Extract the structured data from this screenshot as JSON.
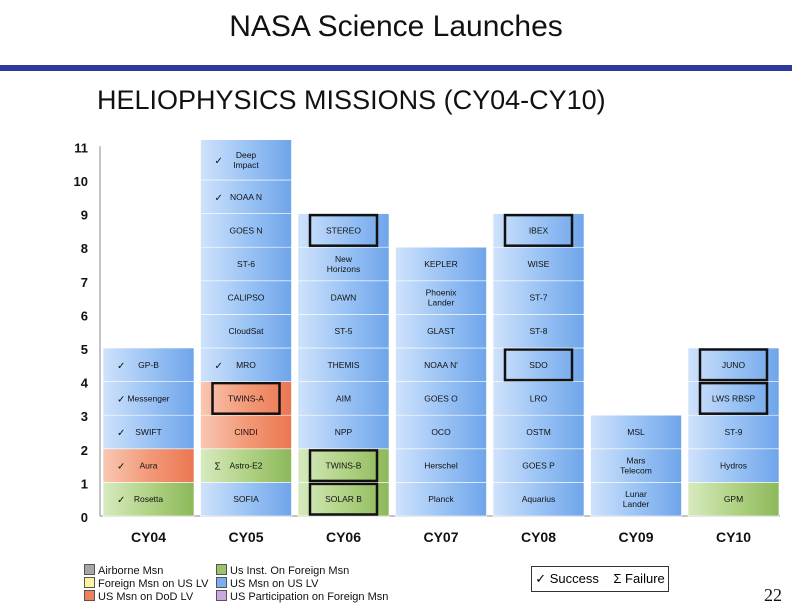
{
  "header": {
    "title": "NASA Science Launches",
    "subtitle": "HELIOPHYSICS MISSIONS (CY04-CY10)"
  },
  "page_number": "22",
  "status_key": {
    "success": "Success",
    "failure": "Failure"
  },
  "legend": [
    {
      "label": "Airborne Msn",
      "color": "#a6a6a6"
    },
    {
      "label": "Foreign Msn on US LV",
      "color": "#fff2a0"
    },
    {
      "label": "US Msn on DoD LV",
      "color": "#f07f5c"
    },
    {
      "label": "Us Inst. On Foreign Msn",
      "color": "#9bc36b"
    },
    {
      "label": "US Msn on US LV",
      "color": "#7aaef0"
    },
    {
      "label": "US Participation on Foreign Msn",
      "color": "#c9a8e0"
    }
  ],
  "chart_data": {
    "type": "bar",
    "stacked": true,
    "ylim": [
      0,
      11
    ],
    "yticks": [
      0,
      1,
      2,
      3,
      4,
      5,
      6,
      7,
      8,
      9,
      10,
      11
    ],
    "categories": [
      "CY04",
      "CY05",
      "CY06",
      "CY07",
      "CY08",
      "CY09",
      "CY10"
    ],
    "colors": {
      "blue": "#7aaef0",
      "green": "#9bc36b",
      "orange": "#f07f5c"
    },
    "columns": [
      {
        "category": "CY04",
        "segments": [
          {
            "label": "Rosetta",
            "color": "green",
            "mark": "success",
            "h": 1
          },
          {
            "label": "Aura",
            "color": "orange",
            "mark": "success",
            "h": 1
          },
          {
            "label": "SWIFT",
            "color": "blue",
            "mark": "success",
            "h": 1
          },
          {
            "label": "Messenger",
            "color": "blue",
            "mark": "success",
            "h": 1
          },
          {
            "label": "GP-B",
            "color": "blue",
            "mark": "success",
            "h": 1
          }
        ]
      },
      {
        "category": "CY05",
        "segments": [
          {
            "label": "SOFIA",
            "color": "blue",
            "h": 1
          },
          {
            "label": "Astro-E2",
            "color": "green",
            "mark": "failure",
            "h": 1
          },
          {
            "label": "CINDI",
            "color": "orange",
            "h": 1
          },
          {
            "label": "TWINS-A",
            "color": "orange",
            "boxed": true,
            "h": 1
          },
          {
            "label": "MRO",
            "color": "blue",
            "mark": "success",
            "h": 1
          },
          {
            "label": "CloudSat",
            "color": "blue",
            "h": 1
          },
          {
            "label": "CALIPSO",
            "color": "blue",
            "h": 1
          },
          {
            "label": "ST-6",
            "color": "blue",
            "h": 1
          },
          {
            "label": "GOES N",
            "color": "blue",
            "h": 1
          },
          {
            "label": "NOAA N",
            "color": "blue",
            "mark": "success",
            "h": 1
          },
          {
            "label": "Deep Impact",
            "color": "blue",
            "mark": "success",
            "h": 1.2
          }
        ]
      },
      {
        "category": "CY06",
        "segments": [
          {
            "label": "SOLAR B",
            "color": "green",
            "boxed": true,
            "h": 1
          },
          {
            "label": "TWINS-B",
            "color": "green",
            "boxed": true,
            "h": 1
          },
          {
            "label": "NPP",
            "color": "blue",
            "h": 1
          },
          {
            "label": "AIM",
            "color": "blue",
            "h": 1
          },
          {
            "label": "THEMIS",
            "color": "blue",
            "h": 1
          },
          {
            "label": "ST-5",
            "color": "blue",
            "h": 1
          },
          {
            "label": "DAWN",
            "color": "blue",
            "h": 1
          },
          {
            "label": "New Horizons",
            "color": "blue",
            "h": 1
          },
          {
            "label": "STEREO",
            "color": "blue",
            "boxed": true,
            "h": 1
          }
        ]
      },
      {
        "category": "CY07",
        "segments": [
          {
            "label": "Planck",
            "color": "blue",
            "h": 1
          },
          {
            "label": "Herschel",
            "color": "blue",
            "h": 1
          },
          {
            "label": "OCO",
            "color": "blue",
            "h": 1
          },
          {
            "label": "GOES O",
            "color": "blue",
            "h": 1
          },
          {
            "label": "NOAA N'",
            "color": "blue",
            "h": 1
          },
          {
            "label": "GLAST",
            "color": "blue",
            "h": 1
          },
          {
            "label": "Phoenix Lander",
            "color": "blue",
            "h": 1
          },
          {
            "label": "KEPLER",
            "color": "blue",
            "h": 1
          }
        ]
      },
      {
        "category": "CY08",
        "segments": [
          {
            "label": "Aquarius",
            "color": "blue",
            "h": 1
          },
          {
            "label": "GOES P",
            "color": "blue",
            "h": 1
          },
          {
            "label": "OSTM",
            "color": "blue",
            "h": 1
          },
          {
            "label": "LRO",
            "color": "blue",
            "h": 1
          },
          {
            "label": "SDO",
            "color": "blue",
            "boxed": true,
            "h": 1
          },
          {
            "label": "ST-8",
            "color": "blue",
            "h": 1
          },
          {
            "label": "ST-7",
            "color": "blue",
            "h": 1
          },
          {
            "label": "WISE",
            "color": "blue",
            "h": 1
          },
          {
            "label": "IBEX",
            "color": "blue",
            "boxed": true,
            "h": 1
          }
        ]
      },
      {
        "category": "CY09",
        "segments": [
          {
            "label": "Lunar Lander",
            "color": "blue",
            "h": 1
          },
          {
            "label": "Mars Telecom",
            "color": "blue",
            "h": 1
          },
          {
            "label": "MSL",
            "color": "blue",
            "h": 1
          }
        ]
      },
      {
        "category": "CY10",
        "segments": [
          {
            "label": "GPM",
            "color": "green",
            "h": 1
          },
          {
            "label": "Hydros",
            "color": "blue",
            "h": 1
          },
          {
            "label": "ST-9",
            "color": "blue",
            "h": 1
          },
          {
            "label": "LWS RBSP",
            "color": "blue",
            "boxed": true,
            "h": 1
          },
          {
            "label": "JUNO",
            "color": "blue",
            "boxed": true,
            "h": 1
          }
        ]
      }
    ]
  }
}
